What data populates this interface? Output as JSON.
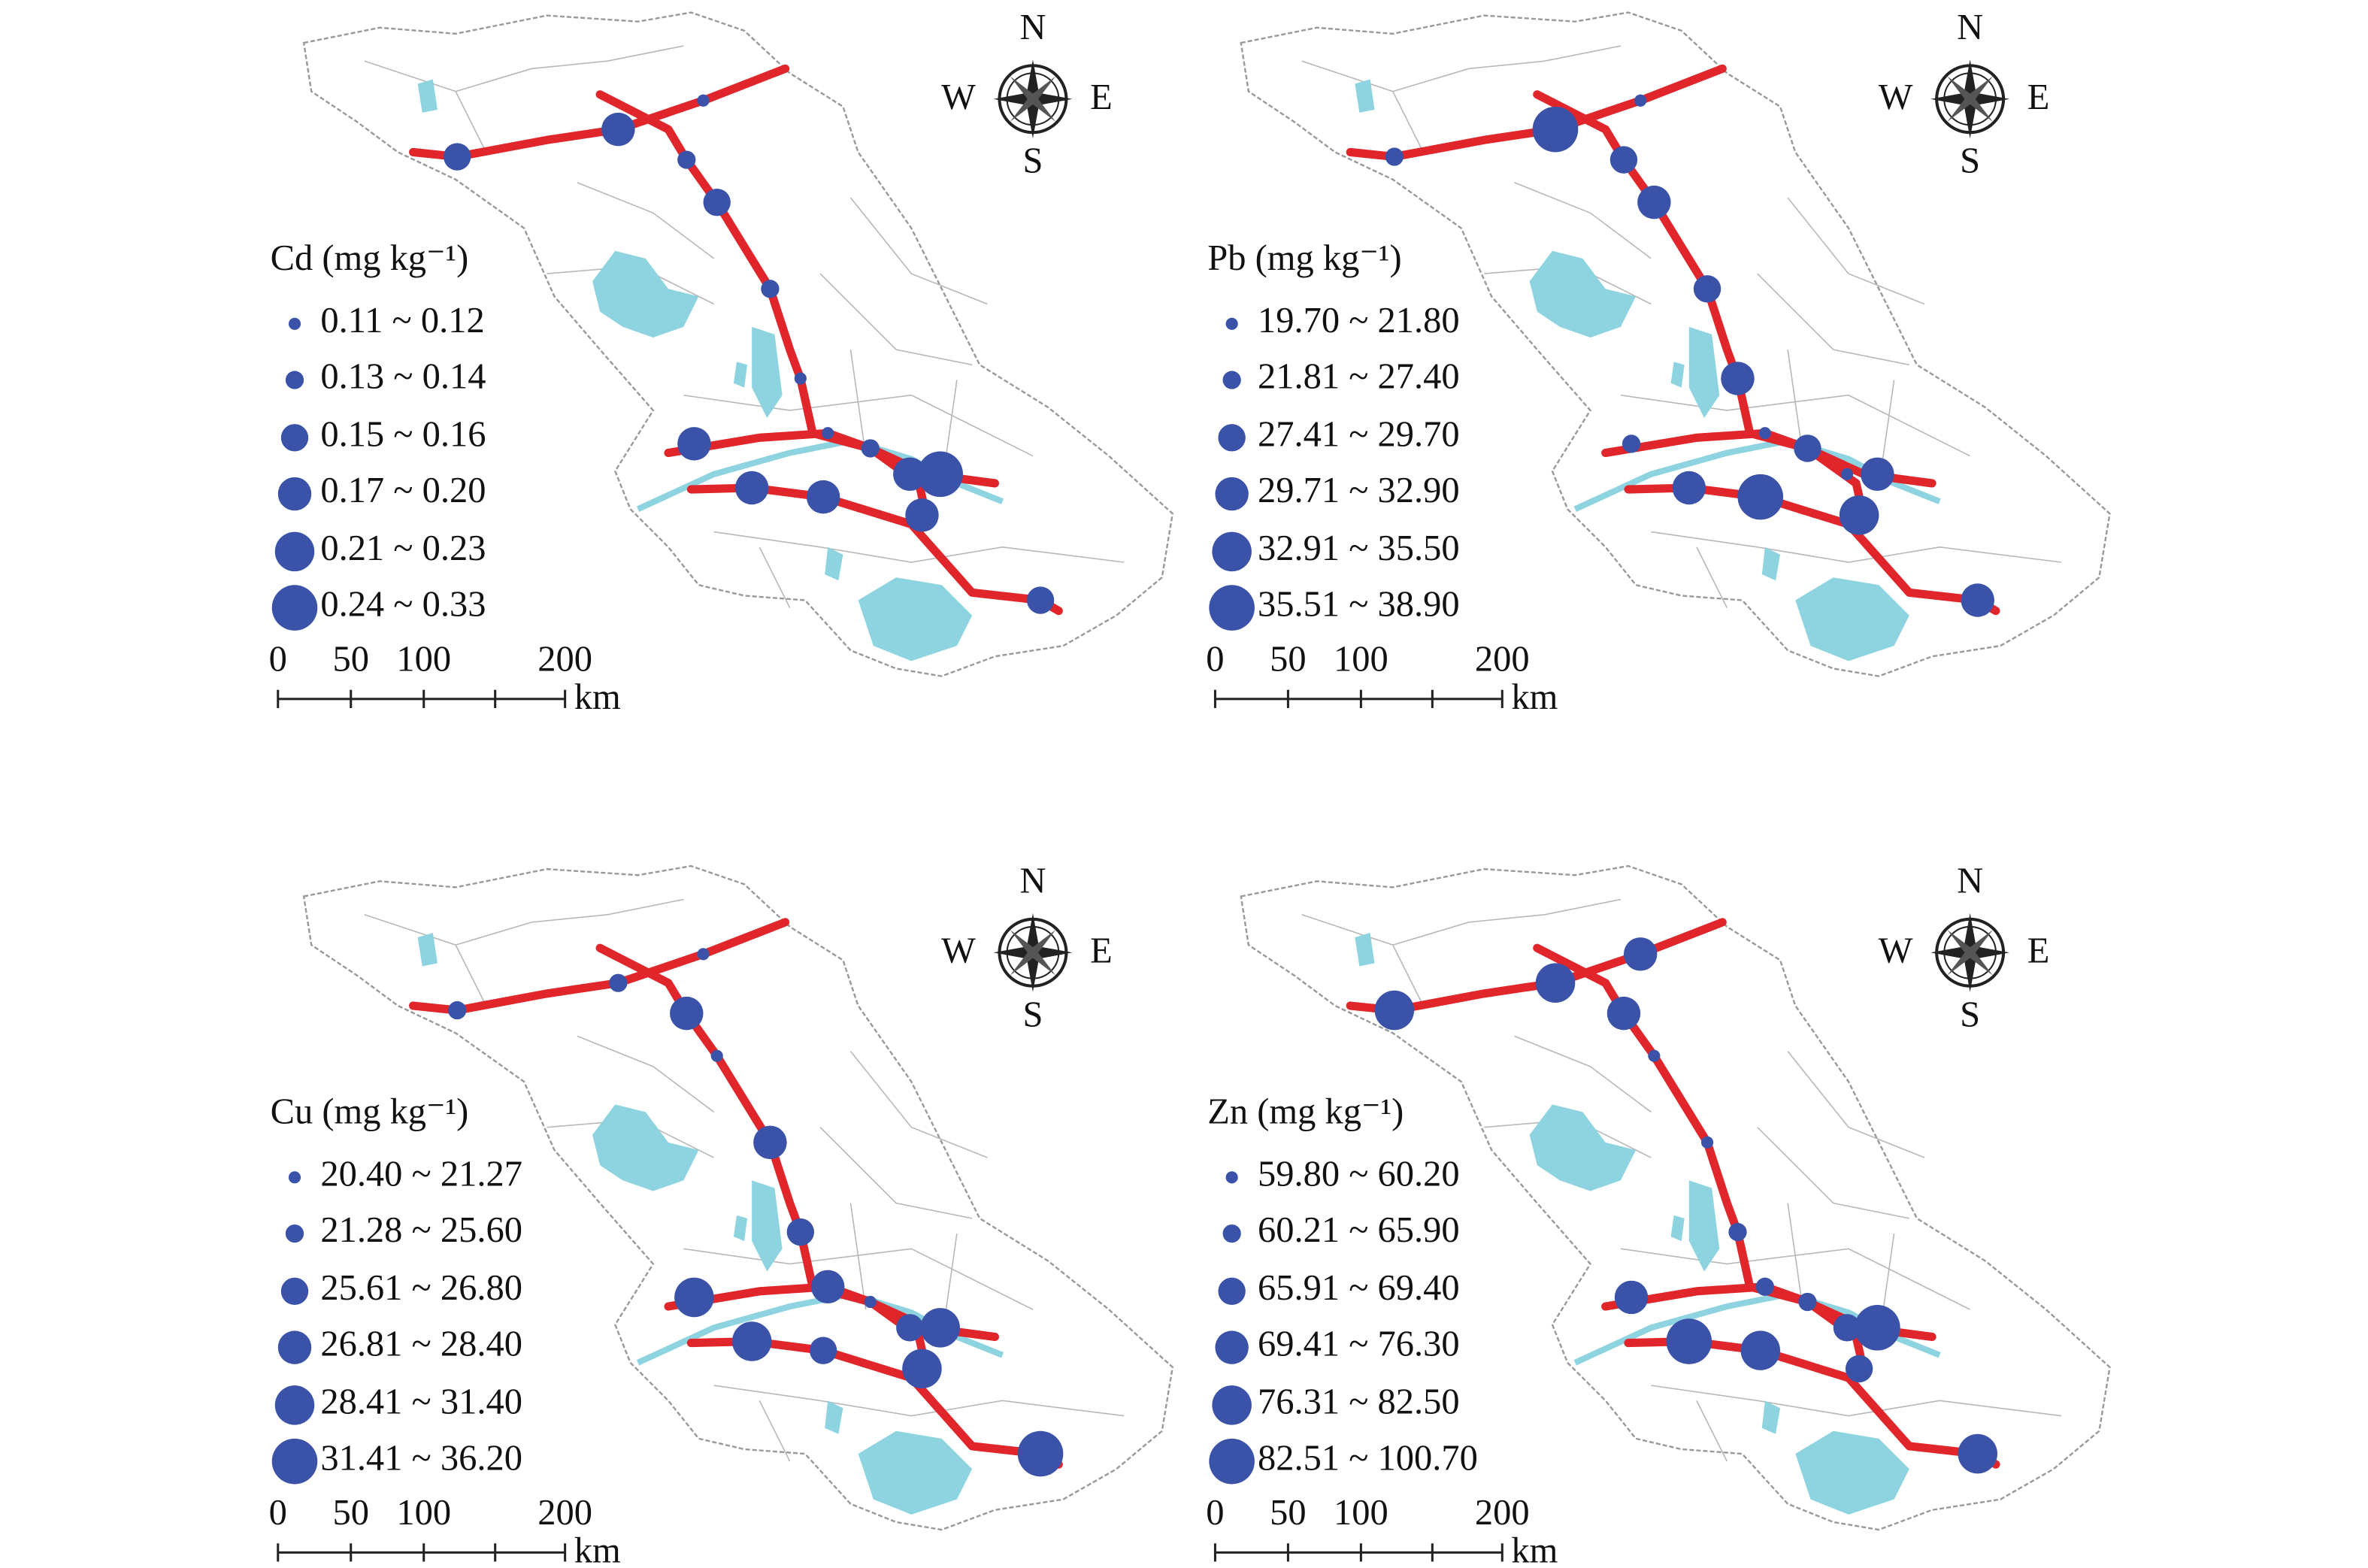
{
  "panels": [
    {
      "title": "Cd (mg kg⁻¹)",
      "legend": [
        "0.11 ~ 0.12",
        "0.13 ~ 0.14",
        "0.15 ~ 0.16",
        "0.17 ~ 0.20",
        "0.21 ~ 0.23",
        "0.24 ~ 0.33"
      ],
      "site_classes": [
        2,
        3,
        0,
        1,
        2,
        1,
        0,
        0,
        3,
        1,
        3,
        5,
        3,
        3,
        3,
        2
      ]
    },
    {
      "title": "Pb (mg kg⁻¹)",
      "legend": [
        "19.70 ~ 21.80",
        "21.81 ~ 27.40",
        "27.41 ~ 29.70",
        "29.71 ~ 32.90",
        "32.91 ~ 35.50",
        "35.51 ~ 38.90"
      ],
      "site_classes": [
        1,
        5,
        0,
        2,
        3,
        2,
        3,
        0,
        1,
        2,
        0,
        3,
        3,
        5,
        4,
        3
      ]
    },
    {
      "title": "Cu (mg kg⁻¹)",
      "legend": [
        "20.40 ~ 21.27",
        "21.28 ~ 25.60",
        "25.61 ~ 26.80",
        "26.81 ~ 28.40",
        "28.41 ~ 31.40",
        "31.41 ~ 36.20"
      ],
      "site_classes": [
        1,
        1,
        0,
        3,
        0,
        3,
        2,
        3,
        4,
        0,
        2,
        4,
        4,
        2,
        4,
        5
      ]
    },
    {
      "title": "Zn (mg kg⁻¹)",
      "legend": [
        "59.80 ~ 60.20",
        "60.21 ~ 65.90",
        "65.91 ~ 69.40",
        "69.41 ~ 76.30",
        "76.31 ~ 82.50",
        "82.51 ~ 100.70"
      ],
      "site_classes": [
        4,
        4,
        3,
        3,
        0,
        0,
        1,
        1,
        3,
        1,
        2,
        5,
        5,
        4,
        2,
        4
      ]
    }
  ],
  "compass": {
    "n": "N",
    "e": "E",
    "s": "S",
    "w": "W"
  },
  "scale_bar": {
    "labels": [
      "0",
      "50",
      "100",
      "200"
    ],
    "unit": "km"
  }
}
